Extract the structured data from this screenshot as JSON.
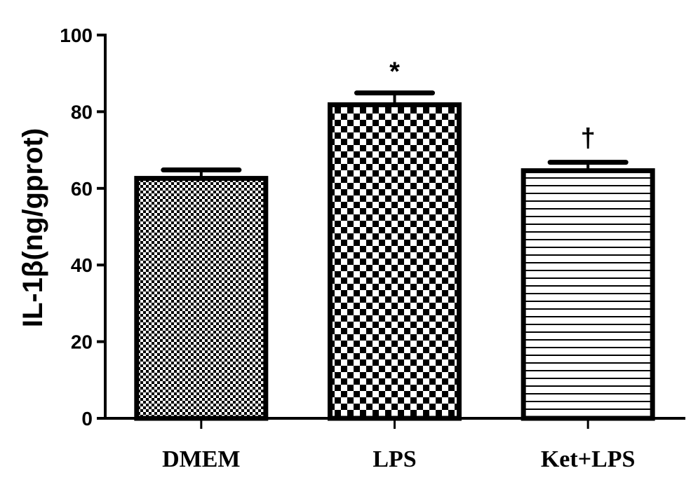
{
  "chart_data": {
    "type": "bar",
    "title": "",
    "xlabel": "",
    "ylabel": "IL-1β(ng/gprot)",
    "ylim": [
      0,
      100
    ],
    "yticks": [
      "0",
      "20",
      "40",
      "60",
      "80",
      "100"
    ],
    "categories": [
      "DMEM",
      "LPS",
      "Ket+LPS"
    ],
    "values": [
      62.6,
      81.8,
      64.6
    ],
    "error_upper": [
      64.8,
      84.9,
      66.8
    ],
    "annotations": [
      "",
      "*",
      "†"
    ],
    "fill_patterns": [
      "fine-checker",
      "coarse-checker",
      "horizontal-lines"
    ],
    "grid": false,
    "colors": {
      "bar_stroke": "#000000",
      "background": "#ffffff"
    }
  }
}
